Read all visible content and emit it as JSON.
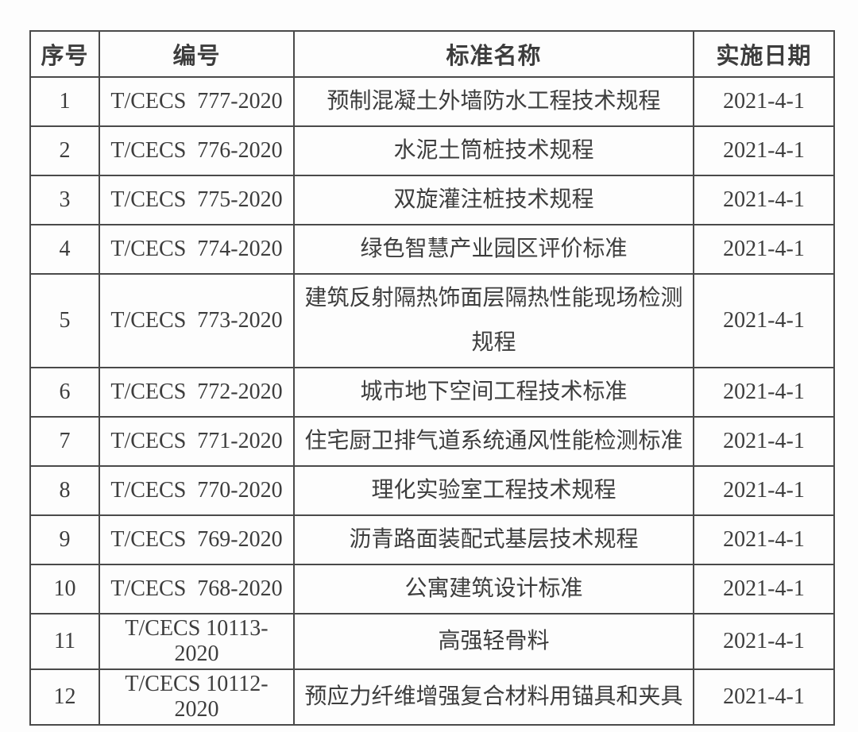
{
  "colors": {
    "background": "#fdfdfd",
    "border": "#4a4a4a",
    "text": "#3d3d3d"
  },
  "table": {
    "headers": [
      "序号",
      "编号",
      "标准名称",
      "实施日期"
    ],
    "rows": [
      {
        "no": "1",
        "code": "T/CECS  777-2020",
        "name": "预制混凝土外墙防水工程技术规程",
        "date": "2021-4-1",
        "tall": false
      },
      {
        "no": "2",
        "code": "T/CECS  776-2020",
        "name": "水泥土筒桩技术规程",
        "date": "2021-4-1",
        "tall": false
      },
      {
        "no": "3",
        "code": "T/CECS  775-2020",
        "name": "双旋灌注桩技术规程",
        "date": "2021-4-1",
        "tall": false
      },
      {
        "no": "4",
        "code": "T/CECS  774-2020",
        "name": "绿色智慧产业园区评价标准",
        "date": "2021-4-1",
        "tall": false
      },
      {
        "no": "5",
        "code": "T/CECS  773-2020",
        "name": "建筑反射隔热饰面层隔热性能现场检测规程",
        "date": "2021-4-1",
        "tall": true
      },
      {
        "no": "6",
        "code": "T/CECS  772-2020",
        "name": "城市地下空间工程技术标准",
        "date": "2021-4-1",
        "tall": false
      },
      {
        "no": "7",
        "code": "T/CECS  771-2020",
        "name": "住宅厨卫排气道系统通风性能检测标准",
        "date": "2021-4-1",
        "tall": false
      },
      {
        "no": "8",
        "code": "T/CECS  770-2020",
        "name": "理化实验室工程技术规程",
        "date": "2021-4-1",
        "tall": false
      },
      {
        "no": "9",
        "code": "T/CECS  769-2020",
        "name": "沥青路面装配式基层技术规程",
        "date": "2021-4-1",
        "tall": false
      },
      {
        "no": "10",
        "code": "T/CECS  768-2020",
        "name": "公寓建筑设计标准",
        "date": "2021-4-1",
        "tall": false
      },
      {
        "no": "11",
        "code": "T/CECS 10113-2020",
        "name": "高强轻骨料",
        "date": "2021-4-1",
        "tall": false
      },
      {
        "no": "12",
        "code": "T/CECS 10112-2020",
        "name": "预应力纤维增强复合材料用锚具和夹具",
        "date": "2021-4-1",
        "tall": false
      }
    ]
  }
}
